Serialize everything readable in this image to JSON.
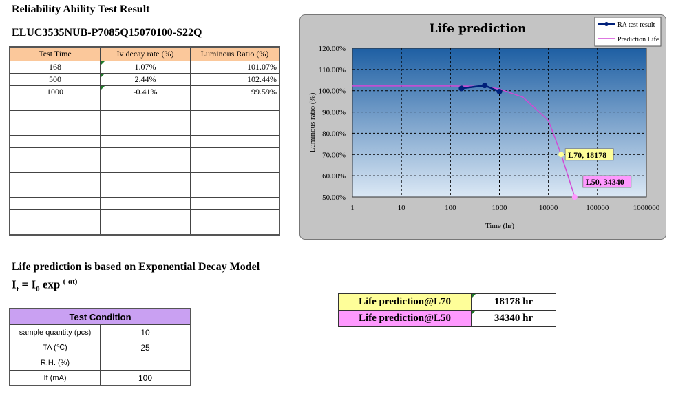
{
  "header": {
    "title": "Reliability Ability Test Result",
    "part_number": "ELUC3535NUB-P7085Q15070100-S22Q"
  },
  "results_table": {
    "headers": [
      "Test Time",
      "Iv decay rate (%)",
      "Luminous Ratio (%)"
    ],
    "rows": [
      [
        "168",
        "1.07%",
        "101.07%"
      ],
      [
        "500",
        "2.44%",
        "102.44%"
      ],
      [
        "1000",
        "-0.41%",
        "99.59%"
      ]
    ],
    "empty_rows": 11
  },
  "model": {
    "line1": "Life prediction is based on Exponential Decay Model",
    "formula_lhs": "I",
    "formula_lhs_sub": "t",
    "formula_eq": " = I",
    "formula_i0_sub": "0",
    "formula_exp": " exp ",
    "formula_sup": "(-αt)"
  },
  "test_condition": {
    "title": "Test Condition",
    "rows": [
      {
        "key": "sample quantity (pcs)",
        "value": "10"
      },
      {
        "key": "TA (℃)",
        "value": "25"
      },
      {
        "key": "R.H. (%)",
        "value": ""
      },
      {
        "key": "If (mA)",
        "value": "100"
      }
    ]
  },
  "life_prediction": [
    {
      "label": "Life prediction@L70",
      "value": "18178 hr",
      "color": "#fefe99"
    },
    {
      "label": "Life prediction@L50",
      "value": "34340 hr",
      "color": "#fe99fe"
    }
  ],
  "chart_data": {
    "type": "line",
    "title": "Life prediction",
    "xlabel": "Time (hr)",
    "ylabel": "Luminous ratio (%)",
    "x_scale": "log",
    "xlim": [
      1,
      1000000
    ],
    "ylim": [
      50,
      120
    ],
    "x_ticks": [
      "1",
      "10",
      "100",
      "1000",
      "10000",
      "100000",
      "1000000"
    ],
    "y_ticks": [
      "50.00%",
      "60.00%",
      "70.00%",
      "80.00%",
      "90.00%",
      "100.00%",
      "110.00%",
      "120.00%"
    ],
    "grid": true,
    "legend_position": "top-right",
    "series": [
      {
        "name": "RA test result",
        "color": "#00207a",
        "x": [
          168,
          500,
          1000
        ],
        "y": [
          101.07,
          102.44,
          99.59
        ]
      },
      {
        "name": "Prediction Life",
        "color": "#d24ad6",
        "x": [
          1,
          100,
          500,
          1000,
          3000,
          10000,
          18178,
          25000,
          34340
        ],
        "y": [
          102.2,
          102.2,
          102.0,
          100.8,
          97.0,
          86.0,
          70.0,
          60.0,
          50.0
        ]
      }
    ],
    "annotations": [
      {
        "text": "L70, 18178",
        "x": 18178,
        "y": 70,
        "color": "#fefe99"
      },
      {
        "text": "L50, 34340",
        "x": 34340,
        "y": 50,
        "color": "#fe99fe"
      }
    ],
    "plot_background": [
      "#1e5fa3",
      "#dbe8f5"
    ]
  }
}
